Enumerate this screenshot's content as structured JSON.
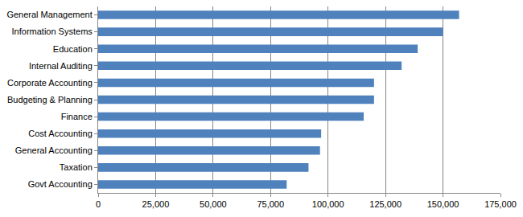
{
  "chart_data": {
    "type": "bar",
    "orientation": "horizontal",
    "categories": [
      "General Management",
      "Information Systems",
      "Education",
      "Internal Auditing",
      "Corporate Accounting",
      "Budgeting & Planning",
      "Finance",
      "Cost Accounting",
      "General Accounting",
      "Taxation",
      "Govt Accounting"
    ],
    "values": [
      157000,
      150000,
      139000,
      132000,
      120000,
      120000,
      115500,
      97000,
      96500,
      91500,
      82000
    ],
    "color": "#4f81bd",
    "xlim": [
      0,
      175000
    ],
    "xticks": [
      0,
      {
        "value": 25000,
        "label": "25,000"
      },
      {
        "value": 50000,
        "label": "50,000"
      },
      {
        "value": 75000,
        "label": "75,000"
      },
      {
        "value": 100000,
        "label": "100,000"
      },
      {
        "value": 125000,
        "label": "125,000"
      },
      {
        "value": 150000,
        "label": "150,000"
      },
      {
        "value": 175000,
        "label": "175,000"
      }
    ],
    "grid": true
  }
}
